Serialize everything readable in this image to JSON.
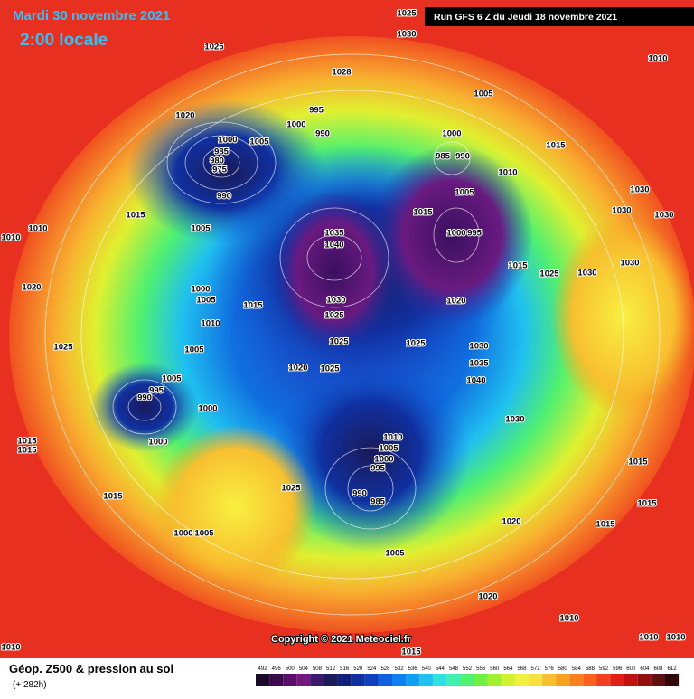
{
  "header": {
    "valid_date": "Mardi 30 novembre 2021",
    "local_time": "2:00 locale",
    "run": "Run GFS 6 Z du Jeudi 18 novembre 2021"
  },
  "copyright": "Copyright © 2021 Meteociel.fr",
  "footer": {
    "title": "Géop. Z500 & pression au sol",
    "lead": "(+ 282h)"
  },
  "colorbar": {
    "values": [
      492,
      496,
      500,
      504,
      508,
      512,
      516,
      520,
      524,
      528,
      532,
      536,
      540,
      544,
      548,
      552,
      556,
      560,
      564,
      568,
      572,
      576,
      580,
      584,
      588,
      592,
      596,
      600,
      604,
      608,
      612
    ],
    "colors": [
      "#1a0a2a",
      "#3a0a4a",
      "#5a106a",
      "#701a80",
      "#3a1a6a",
      "#1a1a5a",
      "#10207a",
      "#1030a0",
      "#1040c0",
      "#1060e0",
      "#1080f0",
      "#10a0f0",
      "#20c0f0",
      "#30e0e0",
      "#40f0b0",
      "#50f070",
      "#70f040",
      "#a0f030",
      "#d0f030",
      "#f0f040",
      "#f8e040",
      "#f8c030",
      "#f8a020",
      "#f88020",
      "#f86020",
      "#f04020",
      "#e02018",
      "#c01010",
      "#901010",
      "#601010",
      "#300808"
    ]
  },
  "isobar_labels": [
    1025,
    1030,
    1010,
    1025,
    1028,
    1005,
    1020,
    995,
    1000,
    990,
    1000,
    1005,
    985,
    980,
    975,
    990,
    1000,
    985,
    990,
    1010,
    1015,
    1005,
    1015,
    1030,
    1030,
    1030,
    1010,
    1015,
    1005,
    1035,
    1040,
    1000,
    995,
    1015,
    1025,
    1030,
    1030,
    1020,
    1000,
    1005,
    1030,
    1025,
    1020,
    1015,
    1010,
    1025,
    1025,
    1030,
    1005,
    1025,
    1035,
    1040,
    1020,
    1025,
    1005,
    995,
    990,
    1000,
    1000,
    1010,
    1005,
    1000,
    995,
    990,
    985,
    1025,
    1030,
    1015,
    1015,
    1015,
    1015,
    1015,
    1015,
    1020,
    1000,
    1005,
    1005,
    1020,
    1010,
    1010,
    1010,
    1010,
    1015,
    1010
  ]
}
